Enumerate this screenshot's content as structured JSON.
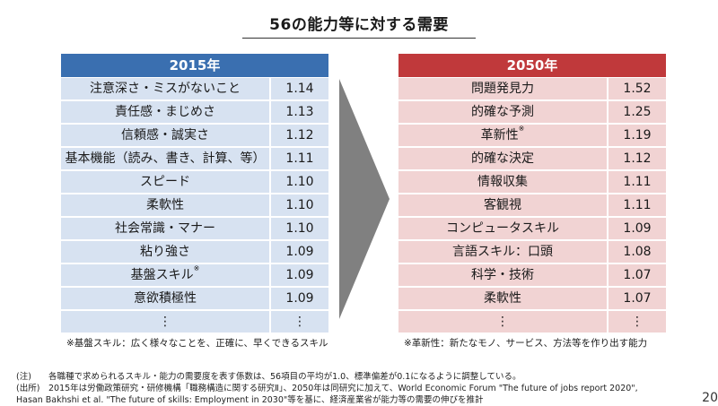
{
  "title": "56の能力等に対する需要",
  "left_panel": {
    "header": "2015年",
    "rows": [
      {
        "name": "注意深さ・ミスがないこと",
        "value": "1.14"
      },
      {
        "name": "責任感・まじめさ",
        "value": "1.13"
      },
      {
        "name": "信頼感・誠実さ",
        "value": "1.12"
      },
      {
        "name": "基本機能（読み、書き、計算、等）",
        "value": "1.11"
      },
      {
        "name": "スピード",
        "value": "1.10"
      },
      {
        "name": "柔軟性",
        "value": "1.10"
      },
      {
        "name": "社会常識・マナー",
        "value": "1.10"
      },
      {
        "name": "粘り強さ",
        "value": "1.09"
      },
      {
        "name": "基盤スキル",
        "mark": "※",
        "value": "1.09"
      },
      {
        "name": "意欲積極性",
        "value": "1.09"
      },
      {
        "name": "⋮",
        "value": "⋮"
      }
    ],
    "note": "※基盤スキル：広く様々なことを、正確に、早くできるスキル"
  },
  "right_panel": {
    "header": "2050年",
    "rows": [
      {
        "name": "問題発見力",
        "value": "1.52"
      },
      {
        "name": "的確な予測",
        "value": "1.25"
      },
      {
        "name": "革新性",
        "mark": "※",
        "value": "1.19"
      },
      {
        "name": "的確な決定",
        "value": "1.12"
      },
      {
        "name": "情報収集",
        "value": "1.11"
      },
      {
        "name": "客観視",
        "value": "1.11"
      },
      {
        "name": "コンピュータスキル",
        "value": "1.09"
      },
      {
        "name": "言語スキル：口頭",
        "value": "1.08"
      },
      {
        "name": "科学・技術",
        "value": "1.07"
      },
      {
        "name": "柔軟性",
        "value": "1.07"
      },
      {
        "name": "⋮",
        "value": "⋮"
      }
    ],
    "note": "※革新性：新たなモノ、サービス、方法等を作り出す能力"
  },
  "footnotes": {
    "note_label": "(注)",
    "note_text": "各職種で求められるスキル・能力の需要度を表す係数は、56項目の平均が1.0、標準偏差が0.1になるように調整している。",
    "source_label": "(出所)",
    "source_text1": "2015年は労働政策研究・研修機構「職務構造に関する研究Ⅱ」、2050年は同研究に加えて、World Economic Forum \"The future of jobs report 2020\",",
    "source_text2": "Hasan Bakhshi et al. \"The future of skills: Employment in 2030\"等を基に、経済産業省が能力等の需要の伸びを推計"
  },
  "page_number": "20",
  "colors": {
    "left_header": "#3a6fb0",
    "left_row": "#d7e2f1",
    "right_header": "#c0393b",
    "right_row": "#f1d3d3",
    "arrow": "#808080"
  }
}
